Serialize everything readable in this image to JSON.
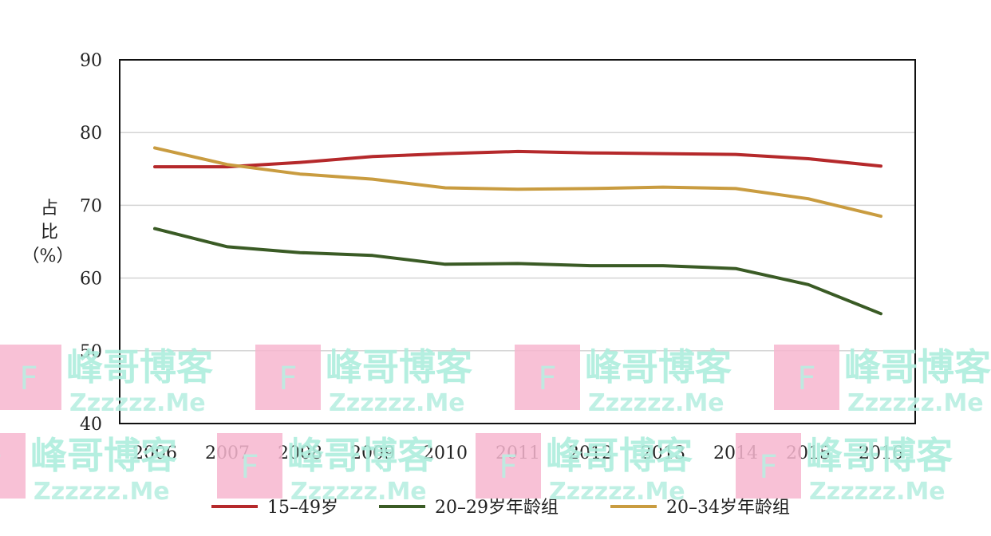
{
  "chart_data": {
    "type": "line",
    "x": [
      "2006",
      "2007",
      "2008",
      "2009",
      "2010",
      "2011",
      "2012",
      "2013",
      "2014",
      "2015",
      "2016"
    ],
    "ylabel": [
      "占",
      "比",
      "（%）"
    ],
    "ylim": [
      40,
      90
    ],
    "yticks": [
      "40",
      "50",
      "60",
      "70",
      "80",
      "90"
    ],
    "grid": "horizontal",
    "legend_position": "bottom",
    "series": [
      {
        "name": "15–49岁",
        "color": "#b5292b",
        "values": [
          75.3,
          75.3,
          75.9,
          76.7,
          77.1,
          77.4,
          77.2,
          77.1,
          77.0,
          76.4,
          75.4
        ]
      },
      {
        "name": "20–29岁年龄组",
        "color": "#3a5b25",
        "values": [
          66.8,
          64.3,
          63.5,
          63.1,
          61.9,
          62.0,
          61.7,
          61.7,
          61.3,
          59.1,
          55.1
        ]
      },
      {
        "name": "20–34岁年龄组",
        "color": "#c99c40",
        "values": [
          77.9,
          75.6,
          74.3,
          73.6,
          72.4,
          72.2,
          72.3,
          72.5,
          72.3,
          70.9,
          68.5
        ]
      }
    ]
  },
  "watermark": {
    "logo_letter": "F",
    "title": "峰哥博客",
    "site": "Zzzzzz.Me"
  }
}
